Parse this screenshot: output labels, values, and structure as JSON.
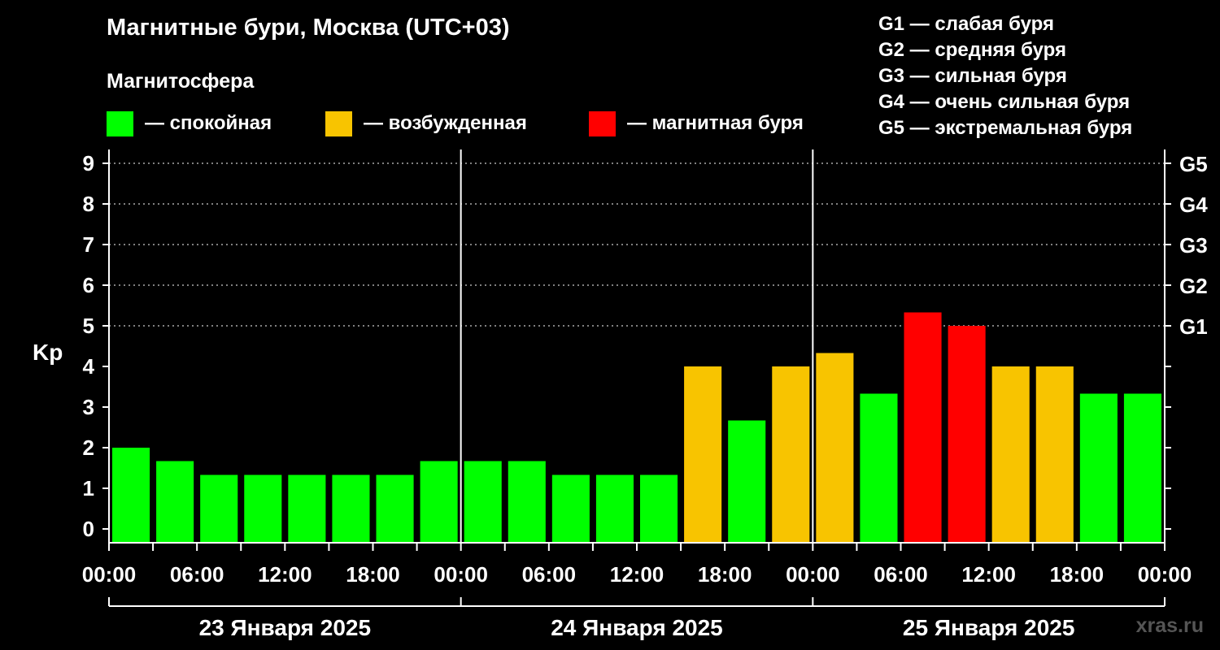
{
  "title": "Магнитные бури, Москва (UTC+03)",
  "subtitle": "Магнитосфера",
  "state_legend": [
    {
      "label": "— спокойная",
      "color": "#00ff00"
    },
    {
      "label": "— возбужденная",
      "color": "#f8c400"
    },
    {
      "label": "— магнитная буря",
      "color": "#ff0000"
    }
  ],
  "g_legend": [
    "G1 — слабая буря",
    "G2 — средняя буря",
    "G3 — сильная буря",
    "G4 — очень сильная буря",
    "G5 — экстремальная буря"
  ],
  "watermark": "xras.ru",
  "chart_data": {
    "type": "bar",
    "ylabel": "Kp",
    "ylim": [
      0,
      9
    ],
    "yticks": [
      "0",
      "1",
      "2",
      "3",
      "4",
      "5",
      "6",
      "7",
      "8",
      "9"
    ],
    "right_axis_labels": [
      {
        "kp": 5,
        "label": "G1"
      },
      {
        "kp": 6,
        "label": "G2"
      },
      {
        "kp": 7,
        "label": "G3"
      },
      {
        "kp": 8,
        "label": "G4"
      },
      {
        "kp": 9,
        "label": "G5"
      }
    ],
    "grid": "dotted horizontal at Kp 5–9",
    "x_time_labels": [
      "00:00",
      "06:00",
      "12:00",
      "18:00",
      "00:00",
      "06:00",
      "12:00",
      "18:00",
      "00:00",
      "06:00",
      "12:00",
      "18:00",
      "00:00"
    ],
    "days": [
      "23 Января 2025",
      "24 Января 2025",
      "25 Января 2025"
    ],
    "interval_hours": 3,
    "values": [
      2.0,
      1.67,
      1.33,
      1.33,
      1.33,
      1.33,
      1.33,
      1.67,
      1.67,
      1.67,
      1.33,
      1.33,
      1.33,
      4.0,
      2.67,
      4.0,
      4.33,
      3.33,
      5.33,
      5.0,
      4.0,
      4.0,
      3.33,
      3.33
    ],
    "states": [
      "calm",
      "calm",
      "calm",
      "calm",
      "calm",
      "calm",
      "calm",
      "calm",
      "calm",
      "calm",
      "calm",
      "calm",
      "calm",
      "active",
      "calm",
      "active",
      "active",
      "calm",
      "storm",
      "storm",
      "active",
      "active",
      "calm",
      "calm"
    ],
    "state_colors": {
      "calm": "#00ff00",
      "active": "#f8c400",
      "storm": "#ff0000"
    }
  }
}
